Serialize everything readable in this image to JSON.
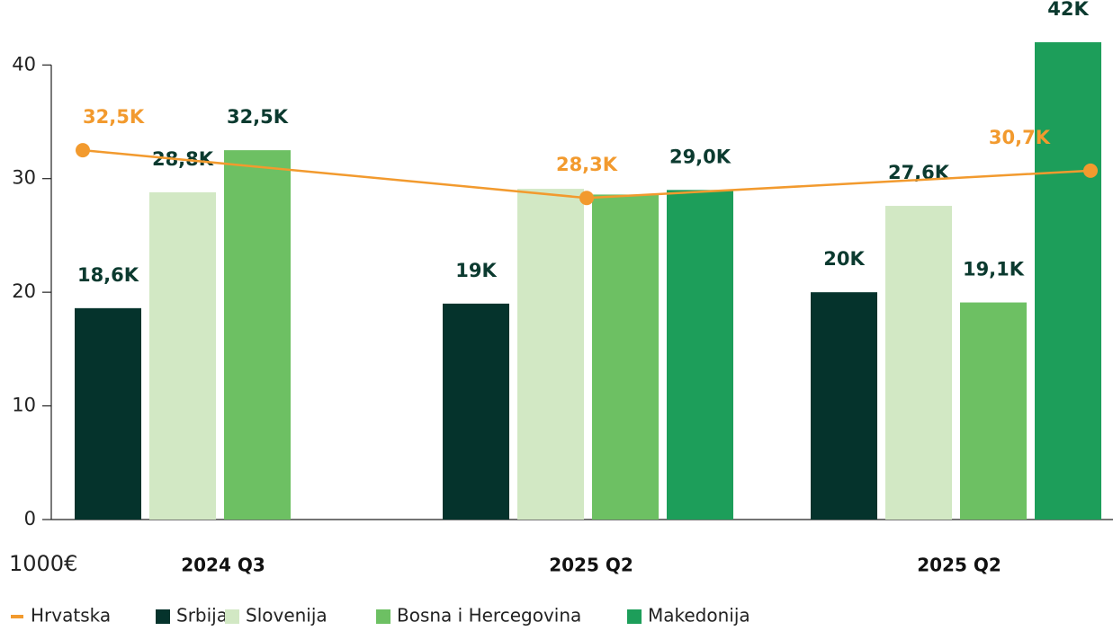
{
  "chart_data": {
    "type": "bar",
    "y_label": "1000€",
    "categories": [
      "2024 Q3",
      "2025 Q2",
      "2025 Q2"
    ],
    "ylim": [
      0,
      42
    ],
    "yticks": [
      0,
      10,
      20,
      30,
      40
    ],
    "grid": false,
    "series": [
      {
        "name": "Hrvatska",
        "type": "line",
        "color": "#f29a2e",
        "values": [
          32.5,
          28.3,
          30.7
        ],
        "value_labels": [
          "32,5K",
          "28,3K",
          "30,7K"
        ]
      },
      {
        "name": "Srbija",
        "type": "bar",
        "color": "#05332c",
        "values": [
          18.6,
          19,
          20
        ],
        "value_labels": [
          "18,6K",
          "19K",
          "20K"
        ]
      },
      {
        "name": "Slovenija",
        "type": "bar",
        "color": "#d2e8c4",
        "values": [
          28.8,
          29.1,
          27.6
        ],
        "value_labels": [
          "28,8K",
          null,
          "27,6K"
        ]
      },
      {
        "name": "Bosna i Hercegovina",
        "type": "bar",
        "color": "#6dc063",
        "values": [
          32.5,
          28.6,
          19.1
        ],
        "value_labels": [
          "32,5K",
          null,
          "19,1K"
        ]
      },
      {
        "name": "Makedonija",
        "type": "bar",
        "color": "#1d9e5a",
        "values": [
          null,
          29.0,
          42
        ],
        "value_labels": [
          null,
          "29,0K",
          "42K"
        ]
      }
    ]
  }
}
